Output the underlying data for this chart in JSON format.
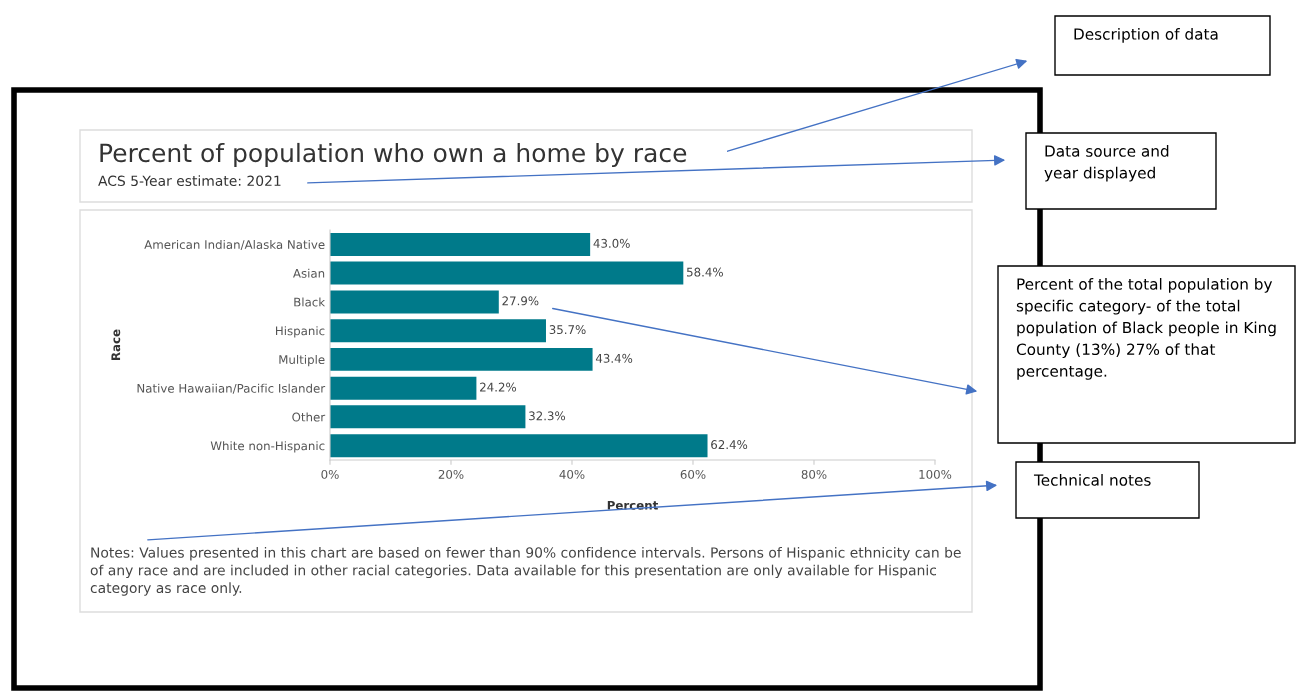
{
  "chart_data": {
    "type": "bar",
    "orientation": "horizontal",
    "title": "Percent of population who own a home by race",
    "subtitle": "ACS 5-Year estimate: 2021",
    "xlabel": "Percent",
    "ylabel": "Race",
    "categories": [
      "American Indian/Alaska Native",
      "Asian",
      "Black",
      "Hispanic",
      "Multiple",
      "Native Hawaiian/Pacific Islander",
      "Other",
      "White non-Hispanic"
    ],
    "values": [
      43.0,
      58.4,
      27.9,
      35.7,
      43.4,
      24.2,
      32.3,
      62.4
    ],
    "value_labels": [
      "43.0%",
      "58.4%",
      "27.9%",
      "35.7%",
      "43.4%",
      "24.2%",
      "32.3%",
      "62.4%"
    ],
    "color": "#007a8a",
    "xlim": [
      0,
      100
    ],
    "xticks": [
      {
        "value": 0,
        "label": "0%"
      },
      {
        "value": 20,
        "label": "20%"
      },
      {
        "value": 40,
        "label": "40%"
      },
      {
        "value": 60,
        "label": "60%"
      },
      {
        "value": 80,
        "label": "80%"
      },
      {
        "value": 100,
        "label": "100%"
      }
    ],
    "annotations": [
      "Notes: Values presented in this chart are based on fewer than 90% confidence intervals. Persons of Hispanic ethnicity can be of any race and are included in other racial categories. Data available for this presentation are only available for Hispanic category as race only.",
      "Description of data",
      "Data source and year displayed",
      "Percent of the total population by specific category- of the total population of Black people in King County (13%) 27% of that percentage.",
      "Technical notes"
    ]
  }
}
